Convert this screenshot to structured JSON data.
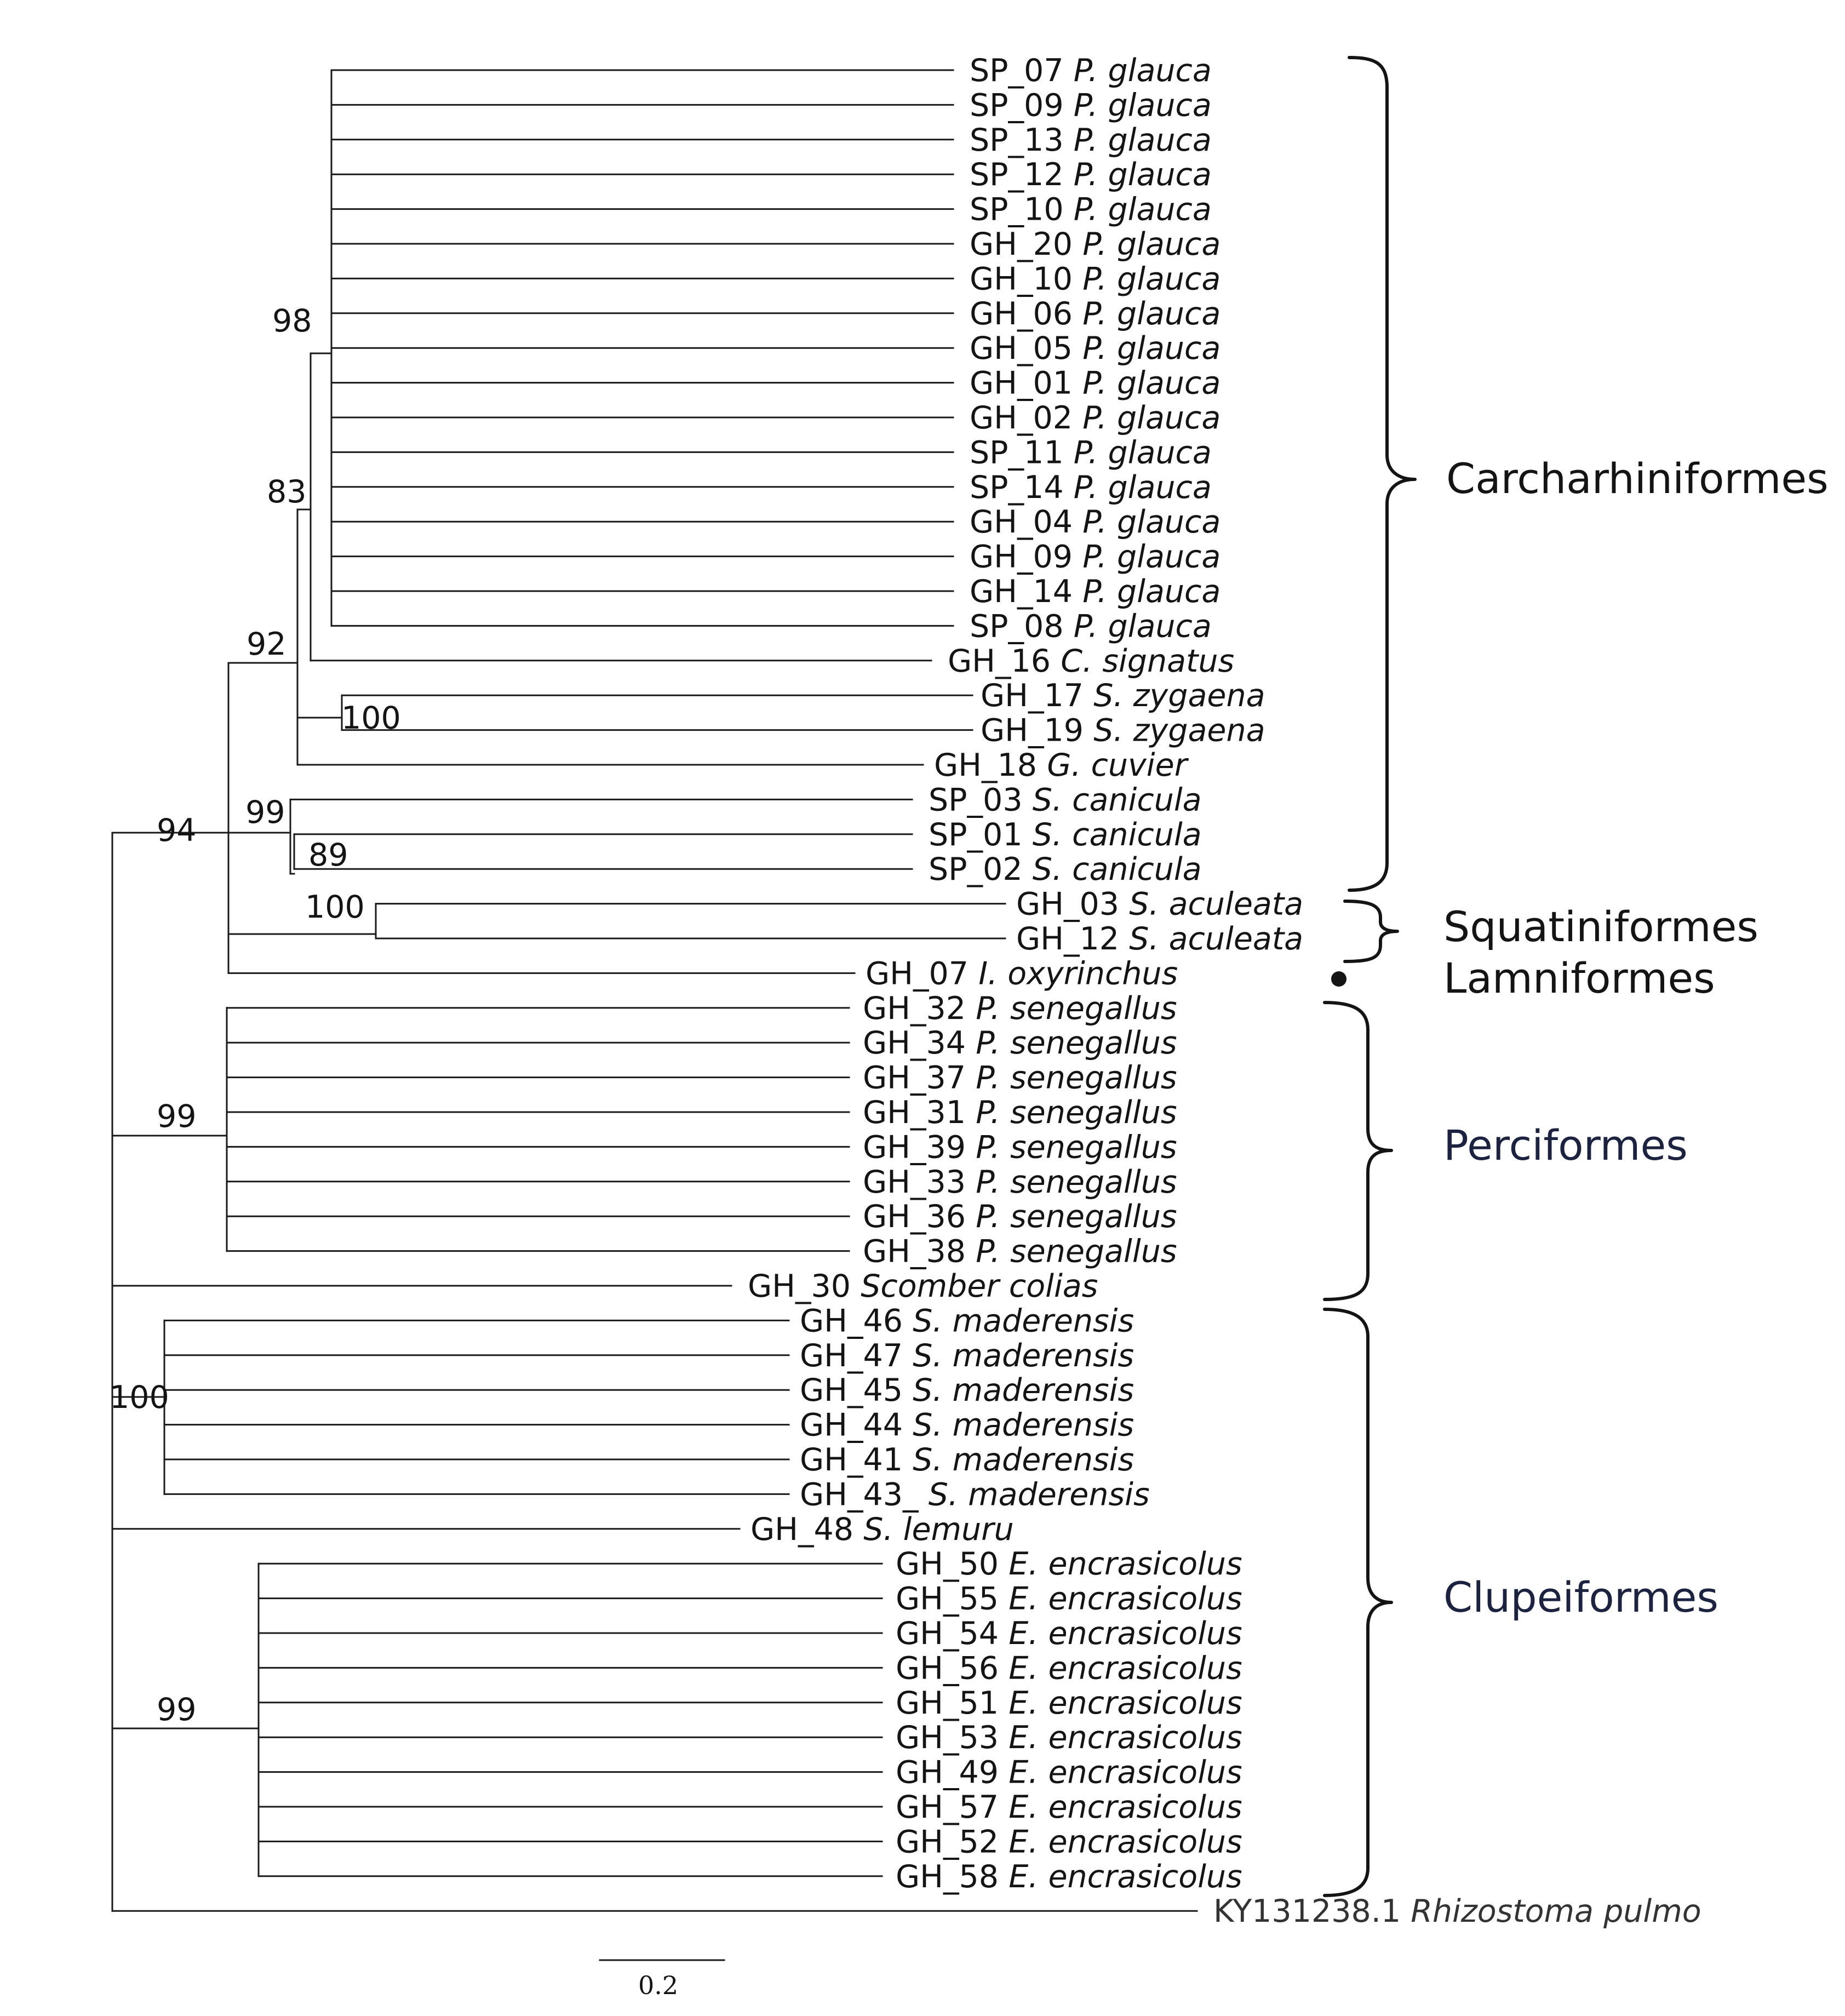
{
  "figure": {
    "type": "phylogenetic_tree",
    "leaves": [
      {
        "id": "SP_07",
        "species": "P. glauca"
      },
      {
        "id": "SP_09",
        "species": "P. glauca"
      },
      {
        "id": "SP_13",
        "species": "P. glauca"
      },
      {
        "id": "SP_12",
        "species": "P. glauca"
      },
      {
        "id": "SP_10",
        "species": "P. glauca"
      },
      {
        "id": "GH_20",
        "species": "P. glauca"
      },
      {
        "id": "GH_10",
        "species": "P. glauca"
      },
      {
        "id": "GH_06",
        "species": "P. glauca"
      },
      {
        "id": "GH_05",
        "species": "P. glauca"
      },
      {
        "id": "GH_01",
        "species": "P. glauca"
      },
      {
        "id": "GH_02",
        "species": "P. glauca"
      },
      {
        "id": "SP_11",
        "species": "P. glauca"
      },
      {
        "id": "SP_14",
        "species": "P. glauca"
      },
      {
        "id": "GH_04",
        "species": "P. glauca"
      },
      {
        "id": "GH_09",
        "species": "P. glauca"
      },
      {
        "id": "GH_14",
        "species": "P. glauca"
      },
      {
        "id": "SP_08",
        "species": "P. glauca"
      },
      {
        "id": "GH_16",
        "species": "C. signatus"
      },
      {
        "id": "GH_17",
        "species": "S. zygaena"
      },
      {
        "id": "GH_19",
        "species": "S. zygaena"
      },
      {
        "id": "GH_18",
        "species": "G. cuvier"
      },
      {
        "id": "SP_03",
        "species": "S. canicula"
      },
      {
        "id": "SP_01",
        "species": "S. canicula"
      },
      {
        "id": "SP_02",
        "species": "S. canicula"
      },
      {
        "id": "GH_03",
        "species": "S. aculeata"
      },
      {
        "id": "GH_12",
        "species": "S. aculeata"
      },
      {
        "id": "GH_07",
        "species": "I. oxyrinchus"
      },
      {
        "id": "GH_32",
        "species": "P. senegallus"
      },
      {
        "id": "GH_34",
        "species": "P. senegallus"
      },
      {
        "id": "GH_37",
        "species": "P. senegallus"
      },
      {
        "id": "GH_31",
        "species": "P. senegallus"
      },
      {
        "id": "GH_39",
        "species": "P. senegallus"
      },
      {
        "id": "GH_33",
        "species": "P. senegallus"
      },
      {
        "id": "GH_36",
        "species": "P. senegallus"
      },
      {
        "id": "GH_38",
        "species": "P. senegallus"
      },
      {
        "id": "GH_30",
        "species": "Scomber colias"
      },
      {
        "id": "GH_46",
        "species": "S. maderensis"
      },
      {
        "id": "GH_47",
        "species": "S. maderensis"
      },
      {
        "id": "GH_45",
        "species": "S. maderensis"
      },
      {
        "id": "GH_44",
        "species": "S. maderensis"
      },
      {
        "id": "GH_41",
        "species": "S. maderensis"
      },
      {
        "id": "GH_43_",
        "species": "S. maderensis"
      },
      {
        "id": "GH_48",
        "species": "S. lemuru"
      },
      {
        "id": "GH_50",
        "species": "E. encrasicolus"
      },
      {
        "id": "GH_55",
        "species": "E. encrasicolus"
      },
      {
        "id": "GH_54",
        "species": "E. encrasicolus"
      },
      {
        "id": "GH_56",
        "species": "E. encrasicolus"
      },
      {
        "id": "GH_51",
        "species": "E. encrasicolus"
      },
      {
        "id": "GH_53",
        "species": "E. encrasicolus"
      },
      {
        "id": "GH_49",
        "species": "E. encrasicolus"
      },
      {
        "id": "GH_57",
        "species": "E. encrasicolus"
      },
      {
        "id": "GH_52",
        "species": "E. encrasicolus"
      },
      {
        "id": "GH_58",
        "species": "E. encrasicolus"
      },
      {
        "id": "KY131238.1",
        "species": "Rhizostoma pulmo"
      }
    ],
    "support_values": [
      "98",
      "83",
      "92",
      "100",
      "99",
      "89",
      "100",
      "94",
      "99",
      "100",
      "99"
    ],
    "orders": [
      "Carcharhiniformes",
      "Squatiniformes",
      "Lamniformes",
      "Perciformes",
      "Clupeiformes"
    ],
    "scale_bar_label": "0.2"
  }
}
